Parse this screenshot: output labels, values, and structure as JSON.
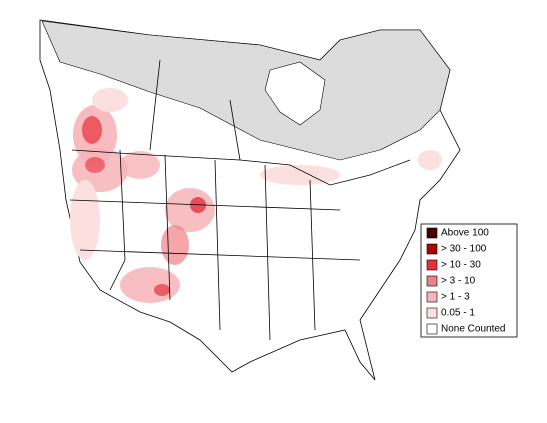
{
  "legend": {
    "items": [
      {
        "label": "Above 100",
        "color": "#4a0000"
      },
      {
        "label": "> 30 - 100",
        "color": "#b00000"
      },
      {
        "label": "> 10 - 30",
        "color": "#e8303a"
      },
      {
        "label": "> 3 - 10",
        "color": "#f08088"
      },
      {
        "label": "> 1 - 3",
        "color": "#f7b4b8"
      },
      {
        "label": "0.05 - 1",
        "color": "#fce0e0"
      },
      {
        "label": "None Counted",
        "color": "#ffffff"
      }
    ]
  }
}
